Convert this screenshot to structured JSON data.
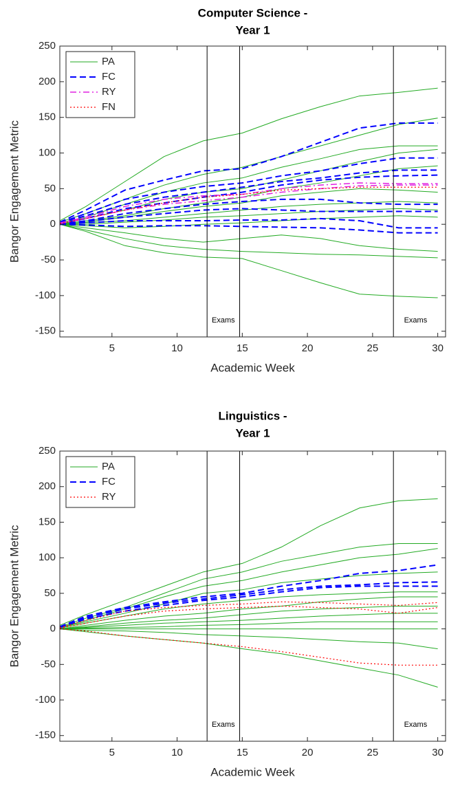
{
  "chart_data": [
    {
      "type": "line",
      "title": [
        "Computer Science -",
        "Year 1"
      ],
      "x_label": "Academic Week",
      "y_label": "Bangor Engagement Metric",
      "x": [
        1,
        3,
        6,
        9,
        12,
        15,
        18,
        21,
        24,
        27,
        30
      ],
      "xlim": [
        1,
        30.6
      ],
      "xticks": [
        5,
        10,
        15,
        20,
        25,
        30
      ],
      "ylim": [
        -158,
        250
      ],
      "yticks": [
        -150,
        -100,
        -50,
        0,
        50,
        100,
        150,
        200,
        250
      ],
      "legend": "upper left",
      "vlines": [
        12.3,
        14.8,
        26.6
      ],
      "annotations": [
        {
          "text": "Exams",
          "x": 13.55,
          "y": -135
        },
        {
          "text": "Exams",
          "x": 28.3,
          "y": -135
        }
      ],
      "series": [
        {
          "name": "PA",
          "color": "#22aa22",
          "dash": "solid",
          "width": 1,
          "values": [
            [
              5,
              25,
              60,
              95,
              117,
              128,
              148,
              165,
              180,
              185,
              191
            ],
            [
              3,
              15,
              35,
              55,
              70,
              80,
              95,
              110,
              125,
              140,
              149
            ],
            [
              2,
              10,
              28,
              45,
              58,
              65,
              80,
              92,
              105,
              110,
              110
            ],
            [
              0,
              8,
              20,
              35,
              45,
              50,
              62,
              75,
              88,
              100,
              105
            ],
            [
              0,
              5,
              12,
              22,
              30,
              38,
              50,
              58,
              68,
              78,
              82
            ],
            [
              0,
              3,
              10,
              18,
              25,
              30,
              40,
              45,
              50,
              48,
              45
            ],
            [
              0,
              2,
              5,
              10,
              15,
              20,
              25,
              28,
              30,
              32,
              30
            ],
            [
              0,
              0,
              3,
              6,
              10,
              12,
              15,
              18,
              20,
              22,
              20
            ],
            [
              0,
              -2,
              -5,
              -3,
              0,
              2,
              5,
              8,
              10,
              12,
              10
            ],
            [
              0,
              -5,
              -12,
              -20,
              -25,
              -20,
              -15,
              -20,
              -30,
              -35,
              -38
            ],
            [
              0,
              -8,
              -20,
              -30,
              -35,
              -38,
              -40,
              -42,
              -43,
              -45,
              -47
            ],
            [
              0,
              -10,
              -30,
              -40,
              -46,
              -48,
              -65,
              -82,
              -98,
              -101,
              -103
            ]
          ]
        },
        {
          "name": "FC",
          "color": "#0000ff",
          "dash": "dashed",
          "width": 2,
          "values": [
            [
              3,
              20,
              48,
              62,
              75,
              78,
              95,
              115,
              135,
              142,
              142
            ],
            [
              2,
              15,
              35,
              45,
              53,
              58,
              68,
              75,
              85,
              93,
              93
            ],
            [
              2,
              12,
              28,
              38,
              45,
              52,
              60,
              65,
              72,
              76,
              76
            ],
            [
              1,
              8,
              22,
              30,
              38,
              45,
              55,
              62,
              66,
              68,
              69
            ],
            [
              0,
              5,
              15,
              22,
              28,
              32,
              35,
              35,
              30,
              28,
              28
            ],
            [
              0,
              4,
              10,
              15,
              20,
              22,
              20,
              18,
              18,
              18,
              18
            ],
            [
              0,
              2,
              5,
              5,
              5,
              6,
              6,
              8,
              5,
              -5,
              -5
            ],
            [
              0,
              -1,
              -3,
              -2,
              -2,
              -3,
              -4,
              -5,
              -8,
              -12,
              -12
            ]
          ]
        },
        {
          "name": "RY",
          "color": "#e020e0",
          "dash": "dashdot",
          "width": 1.5,
          "values": [
            [
              2,
              10,
              25,
              35,
              40,
              42,
              50,
              55,
              58,
              57,
              57
            ],
            [
              1,
              8,
              20,
              28,
              33,
              38,
              45,
              50,
              54,
              55,
              55
            ]
          ]
        },
        {
          "name": "FN",
          "color": "#ff0000",
          "dash": "dotted",
          "width": 1.2,
          "values": [
            [
              1,
              8,
              20,
              30,
              38,
              42,
              48,
              50,
              52,
              52,
              52
            ]
          ]
        }
      ]
    },
    {
      "type": "line",
      "title": [
        "Linguistics -",
        "Year 1"
      ],
      "x_label": "Academic Week",
      "y_label": "Bangor Engagement Metric",
      "x": [
        1,
        3,
        6,
        9,
        12,
        15,
        18,
        21,
        24,
        27,
        30
      ],
      "xlim": [
        1,
        30.6
      ],
      "xticks": [
        5,
        10,
        15,
        20,
        25,
        30
      ],
      "ylim": [
        -158,
        250
      ],
      "yticks": [
        -150,
        -100,
        -50,
        0,
        50,
        100,
        150,
        200,
        250
      ],
      "legend": "upper left",
      "vlines": [
        12.3,
        14.8,
        26.6
      ],
      "annotations": [
        {
          "text": "Exams",
          "x": 13.55,
          "y": -135
        },
        {
          "text": "Exams",
          "x": 28.3,
          "y": -135
        }
      ],
      "series": [
        {
          "name": "PA",
          "color": "#22aa22",
          "dash": "solid",
          "width": 1,
          "values": [
            [
              5,
              20,
              40,
              60,
              80,
              92,
              115,
              145,
              170,
              180,
              183
            ],
            [
              3,
              15,
              30,
              50,
              70,
              80,
              95,
              105,
              115,
              120,
              120
            ],
            [
              2,
              12,
              28,
              45,
              60,
              68,
              80,
              90,
              100,
              105,
              113
            ],
            [
              2,
              10,
              22,
              35,
              50,
              55,
              65,
              70,
              75,
              78,
              80
            ],
            [
              1,
              8,
              18,
              28,
              35,
              40,
              45,
              48,
              50,
              52,
              52
            ],
            [
              0,
              5,
              12,
              18,
              22,
              28,
              32,
              38,
              42,
              45,
              45
            ],
            [
              0,
              3,
              8,
              12,
              15,
              20,
              25,
              28,
              30,
              32,
              32
            ],
            [
              0,
              2,
              5,
              8,
              10,
              12,
              15,
              18,
              20,
              22,
              22
            ],
            [
              0,
              1,
              2,
              3,
              5,
              6,
              8,
              10,
              10,
              10,
              10
            ],
            [
              0,
              0,
              0,
              0,
              0,
              0,
              0,
              0,
              0,
              0,
              0
            ],
            [
              0,
              -2,
              -3,
              -5,
              -8,
              -10,
              -12,
              -15,
              -18,
              -20,
              -28
            ],
            [
              0,
              -4,
              -10,
              -15,
              -20,
              -28,
              -35,
              -45,
              -55,
              -65,
              -82
            ]
          ]
        },
        {
          "name": "FC",
          "color": "#0000ff",
          "dash": "dashed",
          "width": 2,
          "values": [
            [
              3,
              18,
              30,
              38,
              45,
              50,
              60,
              68,
              78,
              82,
              90
            ],
            [
              3,
              16,
              28,
              36,
              42,
              48,
              55,
              60,
              62,
              65,
              66
            ],
            [
              2,
              14,
              25,
              33,
              40,
              45,
              52,
              58,
              60,
              60,
              60
            ]
          ]
        },
        {
          "name": "RY",
          "color": "#ff0000",
          "dash": "dotted",
          "width": 1.2,
          "values": [
            [
              2,
              12,
              25,
              30,
              33,
              35,
              38,
              37,
              35,
              33,
              37
            ],
            [
              1,
              8,
              18,
              25,
              28,
              30,
              32,
              30,
              28,
              22,
              30
            ],
            [
              0,
              -3,
              -10,
              -15,
              -20,
              -25,
              -32,
              -40,
              -48,
              -51,
              -51
            ]
          ]
        }
      ]
    }
  ]
}
